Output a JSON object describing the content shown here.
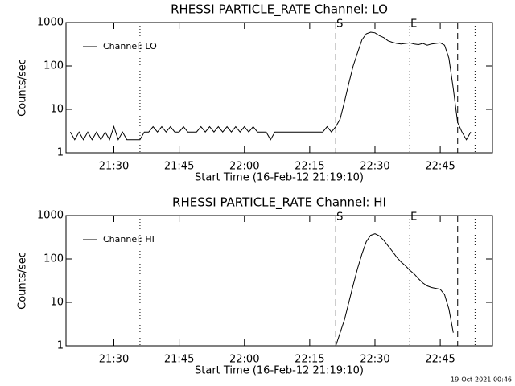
{
  "chart_data": [
    {
      "type": "line",
      "title": "RHESSI PARTICLE_RATE Channel: LO",
      "xlabel": "Start Time (16-Feb-12 21:19:10)",
      "ylabel": "Counts/sec",
      "log_y": true,
      "legend": "upper left",
      "xlim": [
        "21:19",
        "22:57"
      ],
      "xticks": [
        "21:30",
        "21:45",
        "22:00",
        "22:15",
        "22:30",
        "22:45"
      ],
      "ylim": [
        1,
        1000
      ],
      "yticks": [
        1,
        10,
        100,
        1000
      ],
      "vlines": [
        {
          "x": "21:36",
          "style": "dotted"
        },
        {
          "x": "22:21",
          "style": "dashed",
          "label": "S"
        },
        {
          "x": "22:38",
          "style": "dotted",
          "label": "E"
        },
        {
          "x": "22:49",
          "style": "dashed"
        },
        {
          "x": "22:53",
          "style": "dotted"
        }
      ],
      "x": [
        "21:20",
        "21:21",
        "21:22",
        "21:23",
        "21:24",
        "21:25",
        "21:26",
        "21:27",
        "21:28",
        "21:29",
        "21:30",
        "21:31",
        "21:32",
        "21:33",
        "21:34",
        "21:35",
        "21:36",
        "21:37",
        "21:38",
        "21:39",
        "21:40",
        "21:41",
        "21:42",
        "21:43",
        "21:44",
        "21:45",
        "21:46",
        "21:47",
        "21:48",
        "21:49",
        "21:50",
        "21:51",
        "21:52",
        "21:53",
        "21:54",
        "21:55",
        "21:56",
        "21:57",
        "21:58",
        "21:59",
        "22:00",
        "22:01",
        "22:02",
        "22:03",
        "22:04",
        "22:05",
        "22:06",
        "22:07",
        "22:08",
        "22:09",
        "22:10",
        "22:11",
        "22:12",
        "22:13",
        "22:14",
        "22:15",
        "22:16",
        "22:17",
        "22:18",
        "22:19",
        "22:20",
        "22:21",
        "22:22",
        "22:23",
        "22:24",
        "22:25",
        "22:26",
        "22:27",
        "22:28",
        "22:29",
        "22:30",
        "22:31",
        "22:32",
        "22:33",
        "22:34",
        "22:35",
        "22:36",
        "22:37",
        "22:38",
        "22:39",
        "22:40",
        "22:41",
        "22:42",
        "22:43",
        "22:44",
        "22:45",
        "22:46",
        "22:47",
        "22:48",
        "22:49",
        "22:50",
        "22:51",
        "22:52"
      ],
      "series": [
        {
          "name": "Channel: LO",
          "color": "#000000",
          "values": [
            3,
            2,
            3,
            2,
            3,
            2,
            3,
            2,
            3,
            2,
            4,
            2,
            3,
            2,
            2,
            2,
            2,
            3,
            3,
            4,
            3,
            4,
            3,
            4,
            3,
            3,
            4,
            3,
            3,
            3,
            4,
            3,
            4,
            3,
            4,
            3,
            4,
            3,
            4,
            3,
            4,
            3,
            4,
            3,
            3,
            3,
            2,
            3,
            3,
            3,
            3,
            3,
            3,
            3,
            3,
            3,
            3,
            3,
            3,
            4,
            3,
            4,
            6,
            15,
            40,
            100,
            200,
            400,
            550,
            600,
            580,
            500,
            450,
            380,
            350,
            330,
            320,
            330,
            340,
            320,
            310,
            330,
            300,
            320,
            330,
            340,
            300,
            150,
            30,
            5,
            3,
            2,
            3
          ]
        }
      ]
    },
    {
      "type": "line",
      "title": "RHESSI PARTICLE_RATE Channel: HI",
      "xlabel": "Start Time (16-Feb-12 21:19:10)",
      "ylabel": "Counts/sec",
      "log_y": true,
      "legend": "upper left",
      "xlim": [
        "21:19",
        "22:57"
      ],
      "xticks": [
        "21:30",
        "21:45",
        "22:00",
        "22:15",
        "22:30",
        "22:45"
      ],
      "ylim": [
        1,
        1000
      ],
      "yticks": [
        1,
        10,
        100,
        1000
      ],
      "vlines": [
        {
          "x": "21:36",
          "style": "dotted"
        },
        {
          "x": "22:21",
          "style": "dashed",
          "label": "S"
        },
        {
          "x": "22:38",
          "style": "dotted",
          "label": "E"
        },
        {
          "x": "22:49",
          "style": "dashed"
        },
        {
          "x": "22:53",
          "style": "dotted"
        }
      ],
      "x": [
        "22:21",
        "22:22",
        "22:23",
        "22:24",
        "22:25",
        "22:26",
        "22:27",
        "22:28",
        "22:29",
        "22:30",
        "22:31",
        "22:32",
        "22:33",
        "22:34",
        "22:35",
        "22:36",
        "22:37",
        "22:38",
        "22:39",
        "22:40",
        "22:41",
        "22:42",
        "22:43",
        "22:44",
        "22:45",
        "22:46",
        "22:47",
        "22:48"
      ],
      "series": [
        {
          "name": "Channel: HI",
          "color": "#000000",
          "values": [
            1,
            2,
            4,
            10,
            25,
            60,
            130,
            250,
            350,
            380,
            340,
            270,
            200,
            150,
            110,
            85,
            70,
            55,
            45,
            35,
            28,
            24,
            22,
            21,
            20,
            15,
            7,
            2
          ]
        }
      ]
    }
  ],
  "footer": "19-Oct-2021 00:46"
}
